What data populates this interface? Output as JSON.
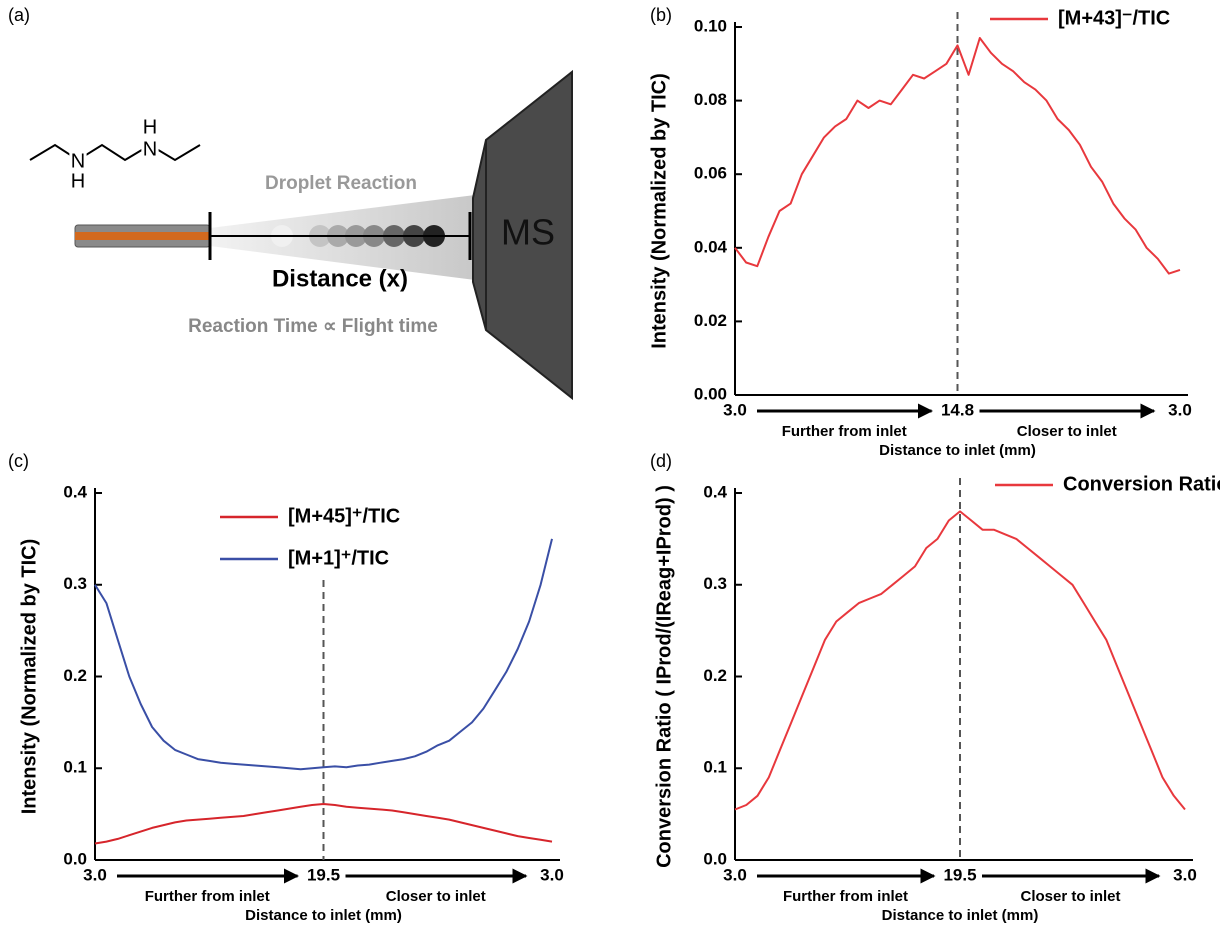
{
  "schematic": {
    "panel_label": "(a)",
    "atoms": [
      "H",
      "N",
      "H",
      "N"
    ],
    "droplet_label": "Droplet Reaction",
    "distance_label": "Distance (x)",
    "time_label": "Reaction Time ∝ Flight time",
    "detector_label": "MS"
  },
  "chart_data": [
    {
      "type": "line",
      "panel_label": "(b)",
      "ylabel": "Intensity (Normalized by TIC)",
      "xlabel": "Distance to inlet (mm)",
      "annotations": [
        "Further from inlet",
        "Closer to inlet"
      ],
      "legend": "upper right",
      "categories": [
        "3.0",
        null,
        null,
        null,
        null,
        null,
        null,
        null,
        null,
        null,
        null,
        null,
        null,
        null,
        null,
        null,
        null,
        null,
        null,
        null,
        "14.8",
        null,
        null,
        null,
        null,
        null,
        null,
        null,
        null,
        null,
        null,
        null,
        null,
        null,
        null,
        null,
        null,
        null,
        null,
        null,
        "3.0"
      ],
      "series": [
        {
          "name": "[M+43]⁻/TIC",
          "color": "#e8383d",
          "values": [
            0.04,
            0.036,
            0.035,
            0.043,
            0.05,
            0.052,
            0.06,
            0.065,
            0.07,
            0.073,
            0.075,
            0.08,
            0.078,
            0.08,
            0.079,
            0.083,
            0.087,
            0.086,
            0.088,
            0.09,
            0.095,
            0.087,
            0.097,
            0.093,
            0.09,
            0.088,
            0.085,
            0.083,
            0.08,
            0.075,
            0.072,
            0.068,
            0.062,
            0.058,
            0.052,
            0.048,
            0.045,
            0.04,
            0.037,
            0.033,
            0.034
          ]
        }
      ],
      "ylim": [
        0,
        0.1
      ],
      "yticks": [
        {
          "value": 0,
          "label": "0.00"
        },
        {
          "value": 0.02,
          "label": "0.02"
        },
        {
          "value": 0.04,
          "label": "0.04"
        },
        {
          "value": 0.06,
          "label": "0.06"
        },
        {
          "value": 0.08,
          "label": "0.08"
        },
        {
          "value": 0.1,
          "label": "0.10"
        }
      ]
    },
    {
      "type": "line",
      "panel_label": "(c)",
      "ylabel": "Intensity (Normalized by TIC)",
      "xlabel": "Distance to inlet (mm)",
      "annotations": [
        "Further from inlet",
        "Closer to inlet"
      ],
      "legend": "upper center",
      "categories": [
        "3.0",
        null,
        null,
        null,
        null,
        null,
        null,
        null,
        null,
        null,
        null,
        null,
        null,
        null,
        null,
        null,
        null,
        null,
        null,
        null,
        "19.5",
        null,
        null,
        null,
        null,
        null,
        null,
        null,
        null,
        null,
        null,
        null,
        null,
        null,
        null,
        null,
        null,
        null,
        null,
        null,
        "3.0"
      ],
      "series": [
        {
          "name": "[M+45]⁺/TIC",
          "color": "#d6252b",
          "values": [
            0.018,
            0.02,
            0.023,
            0.027,
            0.031,
            0.035,
            0.038,
            0.041,
            0.043,
            0.044,
            0.045,
            0.046,
            0.047,
            0.048,
            0.05,
            0.052,
            0.054,
            0.056,
            0.058,
            0.06,
            0.061,
            0.06,
            0.058,
            0.057,
            0.056,
            0.055,
            0.054,
            0.052,
            0.05,
            0.048,
            0.046,
            0.044,
            0.041,
            0.038,
            0.035,
            0.032,
            0.029,
            0.026,
            0.024,
            0.022,
            0.02
          ]
        },
        {
          "name": "[M+1]⁺/TIC",
          "color": "#3a4fa6",
          "values": [
            0.3,
            0.28,
            0.24,
            0.2,
            0.17,
            0.145,
            0.13,
            0.12,
            0.115,
            0.11,
            0.108,
            0.106,
            0.105,
            0.104,
            0.103,
            0.102,
            0.101,
            0.1,
            0.099,
            0.1,
            0.101,
            0.102,
            0.101,
            0.103,
            0.104,
            0.106,
            0.108,
            0.11,
            0.113,
            0.118,
            0.125,
            0.13,
            0.14,
            0.15,
            0.165,
            0.185,
            0.205,
            0.23,
            0.26,
            0.3,
            0.35
          ]
        }
      ],
      "ylim": [
        0,
        0.4
      ],
      "yticks": [
        {
          "value": 0,
          "label": "0.0"
        },
        0.1,
        0.2,
        0.3,
        0.4
      ]
    },
    {
      "type": "line",
      "panel_label": "(d)",
      "ylabel": "Conversion Ratio ( IProd/(IReag+IProd) )",
      "xlabel": "Distance to inlet (mm)",
      "annotations": [
        "Further from inlet",
        "Closer to inlet"
      ],
      "legend": "upper right",
      "categories": [
        "3.0",
        null,
        null,
        null,
        null,
        null,
        null,
        null,
        null,
        null,
        null,
        null,
        null,
        null,
        null,
        null,
        null,
        null,
        null,
        null,
        "19.5",
        null,
        null,
        null,
        null,
        null,
        null,
        null,
        null,
        null,
        null,
        null,
        null,
        null,
        null,
        null,
        null,
        null,
        null,
        null,
        "3.0"
      ],
      "series": [
        {
          "name": "Conversion Ratio",
          "color": "#e8383d",
          "values": [
            0.055,
            0.06,
            0.07,
            0.09,
            0.12,
            0.15,
            0.18,
            0.21,
            0.24,
            0.26,
            0.27,
            0.28,
            0.285,
            0.29,
            0.3,
            0.31,
            0.32,
            0.34,
            0.35,
            0.37,
            0.38,
            0.37,
            0.36,
            0.36,
            0.355,
            0.35,
            0.34,
            0.33,
            0.32,
            0.31,
            0.3,
            0.28,
            0.26,
            0.24,
            0.21,
            0.18,
            0.15,
            0.12,
            0.09,
            0.07,
            0.055
          ]
        }
      ],
      "ylim": [
        0,
        0.4
      ],
      "yticks": [
        {
          "value": 0,
          "label": "0.0"
        },
        0.1,
        0.2,
        0.3,
        0.4
      ]
    }
  ]
}
